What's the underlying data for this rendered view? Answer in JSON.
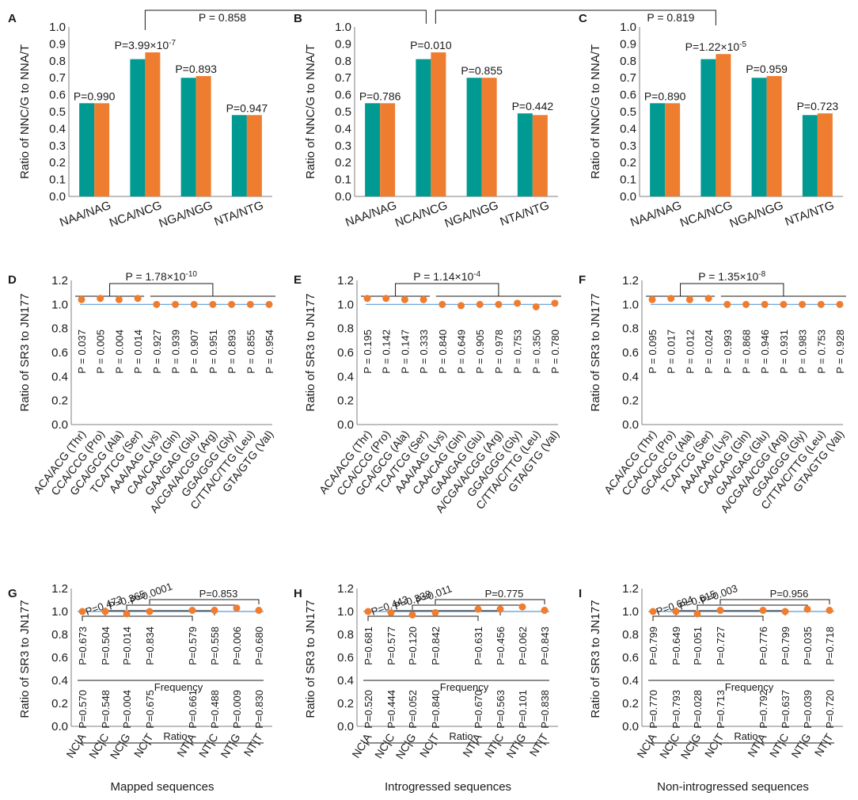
{
  "chart_data": [
    {
      "id": "A",
      "type": "bar",
      "panel_label": "A",
      "ylabel": "Ratio of NNC/G to NNA/T",
      "ylim": [
        0,
        1.0
      ],
      "yticks": [
        "0.0",
        "0.1",
        "0.2",
        "0.3",
        "0.4",
        "0.5",
        "0.6",
        "0.7",
        "0.8",
        "0.9",
        "1.0"
      ],
      "categories": [
        "NAA/NAG",
        "NCA/NCG",
        "NGA/NGG",
        "NTA/NTG"
      ],
      "series": [
        {
          "name": "teal",
          "color": "#009a93",
          "values": [
            0.55,
            0.81,
            0.7,
            0.48
          ]
        },
        {
          "name": "orange",
          "color": "#ef7d30",
          "values": [
            0.55,
            0.85,
            0.71,
            0.48
          ]
        }
      ],
      "annotations": [
        "P=0.990",
        "P=3.99×10",
        "P=0.893",
        "P=0.947"
      ],
      "annotation_exps": [
        "",
        "-7",
        "",
        ""
      ]
    },
    {
      "id": "B",
      "type": "bar",
      "panel_label": "B",
      "ylabel": "Ratio of NNC/G to NNA/T",
      "ylim": [
        0,
        1.0
      ],
      "yticks": [
        "0.0",
        "0.1",
        "0.2",
        "0.3",
        "0.4",
        "0.5",
        "0.6",
        "0.7",
        "0.8",
        "0.9",
        "1.0"
      ],
      "categories": [
        "NAA/NAG",
        "NCA/NCG",
        "NGA/NGG",
        "NTA/NTG"
      ],
      "series": [
        {
          "name": "teal",
          "color": "#009a93",
          "values": [
            0.55,
            0.81,
            0.7,
            0.49
          ]
        },
        {
          "name": "orange",
          "color": "#ef7d30",
          "values": [
            0.55,
            0.85,
            0.7,
            0.48
          ]
        }
      ],
      "annotations": [
        "P=0.786",
        "P=0.010",
        "P=0.855",
        "P=0.442"
      ],
      "annotation_exps": [
        "",
        "",
        "",
        ""
      ]
    },
    {
      "id": "C",
      "type": "bar",
      "panel_label": "C",
      "ylabel": "Ratio of NNC/G to NNA/T",
      "ylim": [
        0,
        1.0
      ],
      "yticks": [
        "0.0",
        "0.1",
        "0.2",
        "0.3",
        "0.4",
        "0.5",
        "0.6",
        "0.7",
        "0.8",
        "0.9",
        "1.0"
      ],
      "categories": [
        "NAA/NAG",
        "NCA/NCG",
        "NGA/NGG",
        "NTA/NTG"
      ],
      "series": [
        {
          "name": "teal",
          "color": "#009a93",
          "values": [
            0.55,
            0.81,
            0.7,
            0.48
          ]
        },
        {
          "name": "orange",
          "color": "#ef7d30",
          "values": [
            0.55,
            0.84,
            0.71,
            0.49
          ]
        }
      ],
      "annotations": [
        "P=0.890",
        "P=1.22×10",
        "P=0.959",
        "P=0.723"
      ],
      "annotation_exps": [
        "",
        "-5",
        "",
        ""
      ]
    },
    {
      "id": "D",
      "type": "scatter",
      "panel_label": "D",
      "ylabel": "Ratio of SR3 to JN177",
      "ylim": [
        0,
        1.2
      ],
      "yticks": [
        "0.0",
        "0.2",
        "0.4",
        "0.6",
        "0.8",
        "1.0",
        "1.2"
      ],
      "categories": [
        "ACA/ACG (Thr)",
        "CCA/CCG (Pro)",
        "GCA/GCG (Ala)",
        "TCA/TCG (Ser)",
        "AAA/AAG (Lys)",
        "CAA/CAG (Gln)",
        "GAA/GAG (Glu)",
        "A/CGA/A/CGG (Arg)",
        "GGA/GGG (Gly)",
        "C/TTA/C/TTG (Leu)",
        "GTA/GTG (Val)"
      ],
      "values": [
        1.04,
        1.05,
        1.04,
        1.05,
        1.0,
        1.0,
        1.0,
        1.0,
        1.0,
        1.0,
        1.0
      ],
      "pvalues": [
        "P = 0.037",
        "P = 0.005",
        "P = 0.004",
        "P = 0.014",
        "P = 0.927",
        "P = 0.939",
        "P = 0.907",
        "P = 0.951",
        "P = 0.893",
        "P = 0.855",
        "P = 0.954"
      ],
      "comparison": "P = 1.78×10",
      "comparison_exp": "-10"
    },
    {
      "id": "E",
      "type": "scatter",
      "panel_label": "E",
      "ylabel": "Ratio of SR3 to JN177",
      "ylim": [
        0,
        1.2
      ],
      "yticks": [
        "0.0",
        "0.2",
        "0.4",
        "0.6",
        "0.8",
        "1.0",
        "1.2"
      ],
      "categories": [
        "ACA/ACG (Thr)",
        "CCA/CCG (Pro)",
        "GCA/GCG (Ala)",
        "TCA/TCG (Ser)",
        "AAA/AAG (Lys)",
        "CAA/CAG (Gln)",
        "GAA/GAG (Glu)",
        "A/CGA/A/CGG (Arg)",
        "GGA/GGG (Gly)",
        "C/TTA/C/TTG (Leu)",
        "GTA/GTG (Val)"
      ],
      "values": [
        1.05,
        1.05,
        1.04,
        1.04,
        1.0,
        0.99,
        1.0,
        1.0,
        1.01,
        0.98,
        1.01
      ],
      "pvalues": [
        "P = 0.195",
        "P = 0.142",
        "P = 0.147",
        "P = 0.333",
        "P = 0.840",
        "P = 0.649",
        "P = 0.905",
        "P = 0.978",
        "P = 0.753",
        "P = 0.350",
        "P = 0.780"
      ],
      "comparison": "P = 1.14×10",
      "comparison_exp": "-4"
    },
    {
      "id": "F",
      "type": "scatter",
      "panel_label": "F",
      "ylabel": "Ratio of SR3 to JN177",
      "ylim": [
        0,
        1.2
      ],
      "yticks": [
        "0.0",
        "0.2",
        "0.4",
        "0.6",
        "0.8",
        "1.0",
        "1.2"
      ],
      "categories": [
        "ACA/ACG (Thr)",
        "CCA/CCG (Pro)",
        "GCA/GCG (Ala)",
        "TCA/TCG (Ser)",
        "AAA/AAG (Lys)",
        "CAA/CAG (Gln)",
        "GAA/GAG (Glu)",
        "A/CGA/A/CGG (Arg)",
        "GGA/GGG (Gly)",
        "C/TTA/C/TTG (Leu)",
        "GTA/GTG (Val)"
      ],
      "values": [
        1.04,
        1.05,
        1.04,
        1.05,
        1.0,
        1.0,
        1.0,
        1.0,
        1.0,
        1.0,
        1.0
      ],
      "pvalues": [
        "P = 0.095",
        "P = 0.017",
        "P = 0.012",
        "P = 0.024",
        "P = 0.993",
        "P = 0.868",
        "P = 0.946",
        "P = 0.931",
        "P = 0.983",
        "P = 0.753",
        "P = 0.928"
      ],
      "comparison": "P = 1.35×10",
      "comparison_exp": "-8"
    },
    {
      "id": "G",
      "type": "scatter",
      "panel_label": "G",
      "ylabel": "Ratio of SR3 to JN177",
      "xlabel": "Mapped sequences",
      "ylim": [
        0,
        1.2
      ],
      "yticks": [
        "0.0",
        "0.2",
        "0.4",
        "0.6",
        "0.8",
        "1.0",
        "1.2"
      ],
      "categories": [
        "NC|A",
        "NC|C",
        "NC|G",
        "NC|T",
        "NT|A",
        "NT|C",
        "NT|G",
        "NT|T"
      ],
      "values": [
        1.0,
        1.0,
        0.98,
        1.0,
        1.01,
        1.01,
        1.03,
        1.01
      ],
      "freq_label": "Frequency",
      "ratio_label": "Ratio",
      "pvalues_frequency": [
        "P=0.673",
        "P=0.504",
        "P=0.014",
        "P=0.834",
        "P=0.579",
        "P=0.558",
        "P=0.006",
        "P=0.680"
      ],
      "pvalues_ratio": [
        "P=0.570",
        "P=0.548",
        "P=0.004",
        "P=0.675",
        "P=0.661",
        "P=0.488",
        "P=0.009",
        "P=0.830"
      ],
      "comparisons": [
        "P=0.473",
        "P=0.365",
        "P=0.0001",
        "P=0.853"
      ]
    },
    {
      "id": "H",
      "type": "scatter",
      "panel_label": "H",
      "ylabel": "Ratio of SR3 to JN177",
      "xlabel": "Introgressed sequences",
      "ylim": [
        0,
        1.2
      ],
      "yticks": [
        "0.0",
        "0.2",
        "0.4",
        "0.6",
        "0.8",
        "1.0",
        "1.2"
      ],
      "categories": [
        "NC|A",
        "NC|C",
        "NC|G",
        "NC|T",
        "NT|A",
        "NT|C",
        "NT|G",
        "NT|T"
      ],
      "values": [
        1.0,
        0.99,
        0.97,
        0.99,
        1.02,
        1.02,
        1.04,
        1.01
      ],
      "freq_label": "Frequency",
      "ratio_label": "Ratio",
      "pvalues_frequency": [
        "P=0.681",
        "P=0.577",
        "P=0.120",
        "P=0.842",
        "P=0.631",
        "P=0.456",
        "P=0.062",
        "P=0.843"
      ],
      "pvalues_ratio": [
        "P=0.520",
        "P=0.444",
        "P=0.052",
        "P=0.840",
        "P=0.670",
        "P=0.563",
        "P=0.101",
        "P=0.838"
      ],
      "comparisons": [
        "P=0.443",
        "P=0.338",
        "P=0.011",
        "P=0.775"
      ]
    },
    {
      "id": "I",
      "type": "scatter",
      "panel_label": "I",
      "ylabel": "Ratio of SR3 to JN177",
      "xlabel": "Non-introgressed sequences",
      "ylim": [
        0,
        1.2
      ],
      "yticks": [
        "0.0",
        "0.2",
        "0.4",
        "0.6",
        "0.8",
        "1.0",
        "1.2"
      ],
      "categories": [
        "NC|A",
        "NC|C",
        "NC|G",
        "NC|T",
        "NT|A",
        "NT|C",
        "NT|G",
        "NT|T"
      ],
      "values": [
        1.0,
        1.0,
        0.98,
        1.01,
        1.01,
        1.0,
        1.02,
        1.01
      ],
      "freq_label": "Frequency",
      "ratio_label": "Ratio",
      "pvalues_frequency": [
        "P=0.799",
        "P=0.649",
        "P=0.051",
        "P=0.727",
        "P=0.776",
        "P=0.799",
        "P=0.035",
        "P=0.718"
      ],
      "pvalues_ratio": [
        "P=0.770",
        "P=0.793",
        "P=0.028",
        "P=0.713",
        "P=0.792",
        "P=0.637",
        "P=0.039",
        "P=0.720"
      ],
      "comparisons": [
        "P=0.694",
        "P=0.615",
        "P=0.003",
        "P=0.956"
      ]
    }
  ],
  "cross_comparisons": {
    "A_B": "P = 0.858",
    "B_C": "P = 0.819"
  }
}
